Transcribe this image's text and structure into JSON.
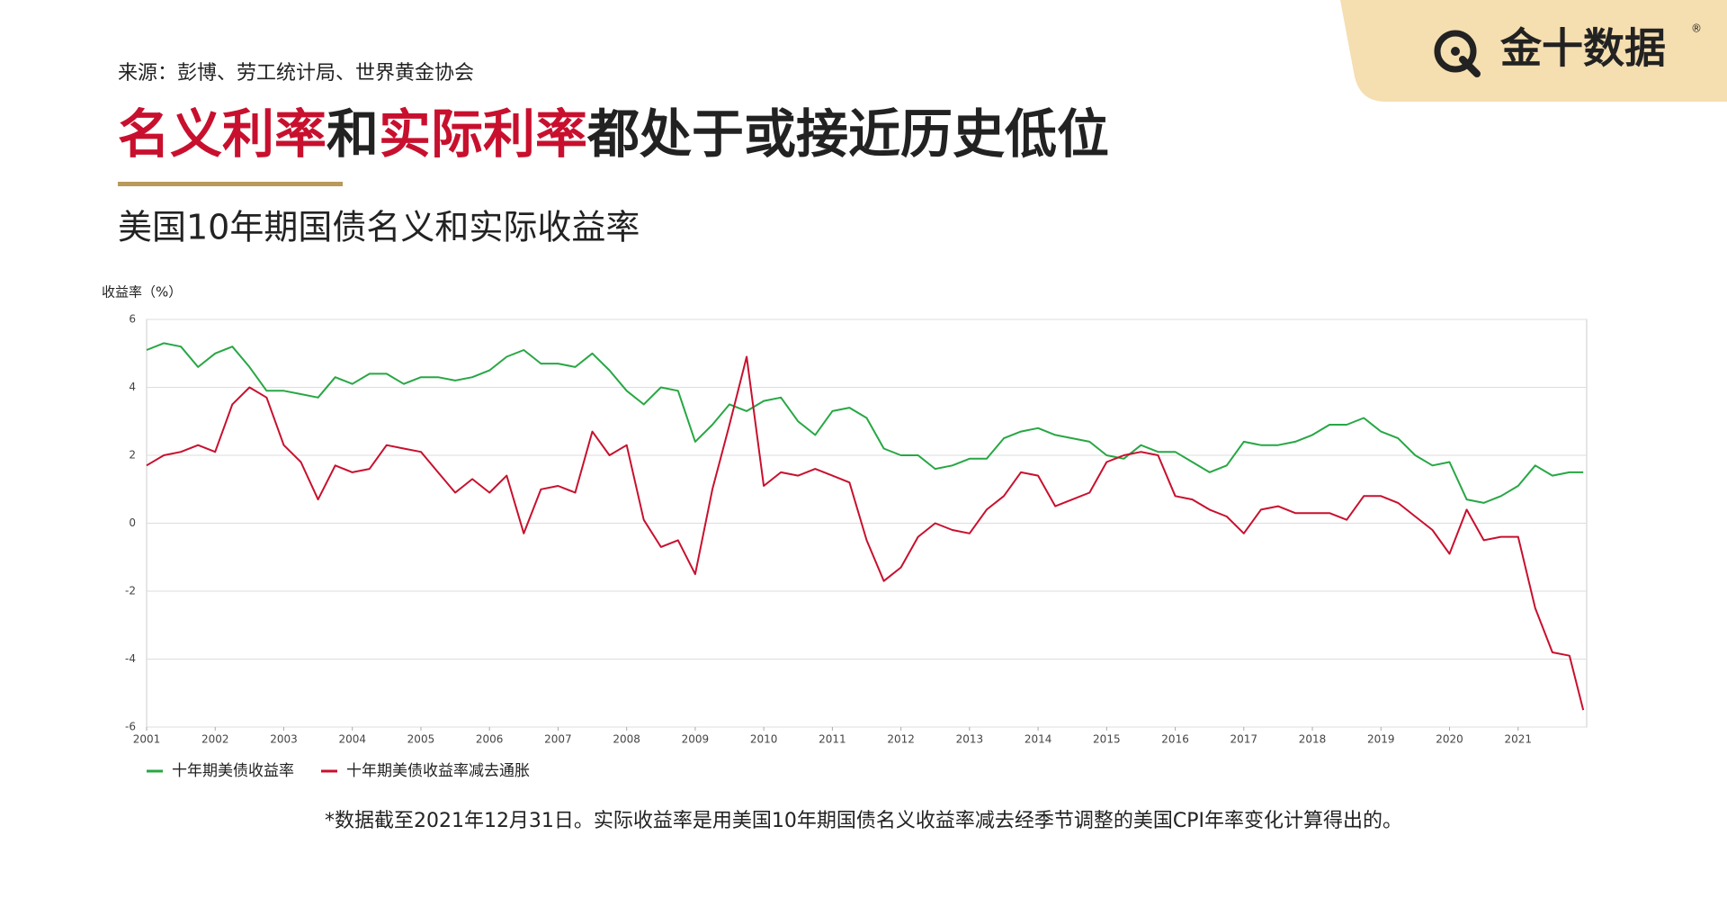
{
  "logo": "金十数据",
  "source": "来源：彭博、劳工统计局、世界黄金协会",
  "headline": {
    "parts": [
      "名义利率",
      "和",
      "实际利率",
      "都处于或接近历史低位"
    ]
  },
  "footnote": "*数据截至2021年12月31日。实际收益率是用美国10年期国债名义收益率减去经季节调整的美国CPI年率变化计算得出的。",
  "chart_data": {
    "type": "line",
    "title": "美国10年期国债名义和实际收益率",
    "y_label": "收益率（%）",
    "xlim": [
      2001,
      2022
    ],
    "xticks": [
      2001,
      2002,
      2003,
      2004,
      2005,
      2006,
      2007,
      2008,
      2009,
      2010,
      2011,
      2012,
      2013,
      2014,
      2015,
      2016,
      2017,
      2018,
      2019,
      2020,
      2021
    ],
    "ylim": [
      -6,
      6
    ],
    "yticks": [
      -6,
      -4,
      -2,
      0,
      2,
      4,
      6
    ],
    "grid": true,
    "x": [
      2001,
      2001.25,
      2001.5,
      2001.75,
      2002,
      2002.25,
      2002.5,
      2002.75,
      2003,
      2003.25,
      2003.5,
      2003.75,
      2004,
      2004.25,
      2004.5,
      2004.75,
      2005,
      2005.25,
      2005.5,
      2005.75,
      2006,
      2006.25,
      2006.5,
      2006.75,
      2007,
      2007.25,
      2007.5,
      2007.75,
      2008,
      2008.25,
      2008.5,
      2008.75,
      2009,
      2009.25,
      2009.5,
      2009.75,
      2010,
      2010.25,
      2010.5,
      2010.75,
      2011,
      2011.25,
      2011.5,
      2011.75,
      2012,
      2012.25,
      2012.5,
      2012.75,
      2013,
      2013.25,
      2013.5,
      2013.75,
      2014,
      2014.25,
      2014.5,
      2014.75,
      2015,
      2015.25,
      2015.5,
      2015.75,
      2016,
      2016.25,
      2016.5,
      2016.75,
      2017,
      2017.25,
      2017.5,
      2017.75,
      2018,
      2018.25,
      2018.5,
      2018.75,
      2019,
      2019.25,
      2019.5,
      2019.75,
      2020,
      2020.25,
      2020.5,
      2020.75,
      2021,
      2021.25,
      2021.5,
      2021.75,
      2021.95
    ],
    "series": [
      {
        "name": "十年期美债收益率",
        "color": "#27a744",
        "values": [
          5.1,
          5.3,
          5.2,
          4.6,
          5.0,
          5.2,
          4.6,
          3.9,
          3.9,
          3.8,
          3.7,
          4.3,
          4.1,
          4.4,
          4.4,
          4.1,
          4.3,
          4.3,
          4.2,
          4.3,
          4.5,
          4.9,
          5.1,
          4.7,
          4.7,
          4.6,
          5.0,
          4.5,
          3.9,
          3.5,
          4.0,
          3.9,
          2.4,
          2.9,
          3.5,
          3.3,
          3.6,
          3.7,
          3.0,
          2.6,
          3.3,
          3.4,
          3.1,
          2.2,
          2.0,
          2.0,
          1.6,
          1.7,
          1.9,
          1.9,
          2.5,
          2.7,
          2.8,
          2.6,
          2.5,
          2.4,
          2.0,
          1.9,
          2.3,
          2.1,
          2.1,
          1.8,
          1.5,
          1.7,
          2.4,
          2.3,
          2.3,
          2.4,
          2.6,
          2.9,
          2.9,
          3.1,
          2.7,
          2.5,
          2.0,
          1.7,
          1.8,
          0.7,
          0.6,
          0.8,
          1.1,
          1.7,
          1.4,
          1.5,
          1.5
        ]
      },
      {
        "name": "十年期美债收益率减去通胀",
        "color": "#c8102e",
        "values": [
          1.7,
          2.0,
          2.1,
          2.3,
          2.1,
          3.5,
          4.0,
          3.7,
          2.3,
          1.8,
          0.7,
          1.7,
          1.5,
          1.6,
          2.3,
          2.2,
          2.1,
          1.5,
          0.9,
          1.3,
          0.9,
          1.4,
          -0.3,
          1.0,
          1.1,
          0.9,
          2.7,
          2.0,
          2.3,
          0.1,
          -0.7,
          -0.5,
          -1.5,
          1.0,
          2.9,
          4.9,
          1.1,
          1.5,
          1.4,
          1.6,
          1.4,
          1.2,
          -0.5,
          -1.7,
          -1.3,
          -0.4,
          0.0,
          -0.2,
          -0.3,
          0.4,
          0.8,
          1.5,
          1.4,
          0.5,
          0.7,
          0.9,
          1.8,
          2.0,
          2.1,
          2.0,
          0.8,
          0.7,
          0.4,
          0.2,
          -0.3,
          0.4,
          0.5,
          0.3,
          0.3,
          0.3,
          0.1,
          0.8,
          0.8,
          0.6,
          0.2,
          -0.2,
          -0.9,
          0.4,
          -0.5,
          -0.4,
          -0.4,
          -2.5,
          -3.8,
          -3.9,
          -5.5
        ]
      }
    ]
  }
}
